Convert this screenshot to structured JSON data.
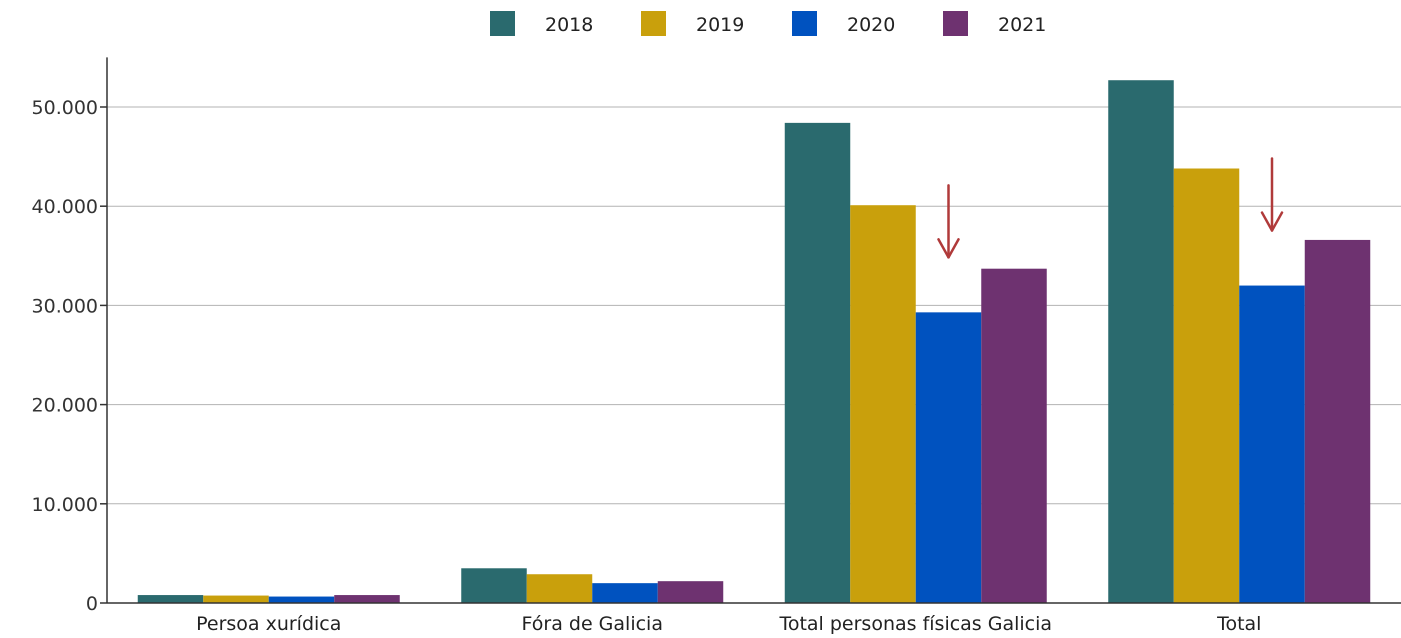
{
  "chart_data": {
    "type": "bar",
    "title": "",
    "xlabel": "",
    "ylabel": "",
    "categories": [
      "Persoa xurídica",
      "Fóra de Galicia",
      "Total personas físicas Galicia",
      "Total"
    ],
    "series": [
      {
        "name": "2018",
        "color": "#2a6a6e",
        "values": [
          800,
          3500,
          48400,
          52700
        ]
      },
      {
        "name": "2019",
        "color": "#c9a00c",
        "values": [
          750,
          2900,
          40100,
          43800
        ]
      },
      {
        "name": "2020",
        "color": "#0052bf",
        "values": [
          650,
          2000,
          29300,
          32000
        ]
      },
      {
        "name": "2021",
        "color": "#6e3270",
        "values": [
          800,
          2200,
          33700,
          36600
        ]
      }
    ],
    "ylim": [
      0,
      55000
    ],
    "yticks": [
      0,
      10000,
      20000,
      30000,
      40000,
      50000
    ],
    "ytick_labels": [
      "0",
      "10.000",
      "20.000",
      "30.000",
      "40.000",
      "50.000"
    ],
    "grid": true,
    "legend_position": "top-center",
    "annotations": [
      {
        "type": "arrow-down",
        "category": "Total personas físicas Galicia",
        "series": "2020",
        "color": "#b03a3a"
      },
      {
        "type": "arrow-down",
        "category": "Total",
        "series": "2020",
        "color": "#b03a3a"
      }
    ]
  }
}
